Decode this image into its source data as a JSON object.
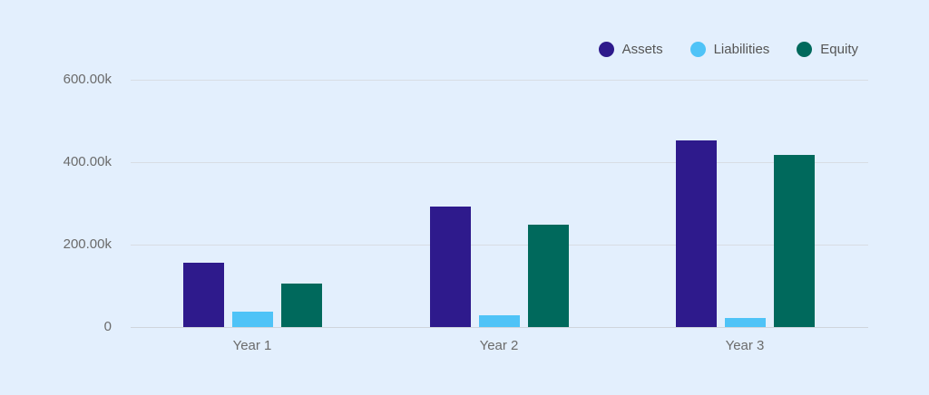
{
  "chart_data": {
    "type": "bar",
    "title": "",
    "xlabel": "",
    "ylabel": "",
    "categories": [
      "Year 1",
      "Year 2",
      "Year 3"
    ],
    "series": [
      {
        "name": "Assets",
        "color": "#2e1a8c",
        "values": [
          156000,
          292000,
          453000
        ]
      },
      {
        "name": "Liabilities",
        "color": "#4fc3f7",
        "values": [
          38000,
          28000,
          22000
        ]
      },
      {
        "name": "Equity",
        "color": "#00695c",
        "values": [
          105000,
          248000,
          418000
        ]
      }
    ],
    "yticks": [
      0,
      200000,
      400000,
      600000
    ],
    "ytick_labels": [
      "0",
      "200.00k",
      "400.00k",
      "600.00k"
    ],
    "ylim": [
      0,
      600000
    ],
    "grid": true,
    "legend_position": "top-right"
  },
  "legend": {
    "items": [
      {
        "label": "Assets",
        "color": "#2e1a8c"
      },
      {
        "label": "Liabilities",
        "color": "#4fc3f7"
      },
      {
        "label": "Equity",
        "color": "#00695c"
      }
    ]
  },
  "axis": {
    "y_labels": [
      "600.00k",
      "400.00k",
      "200.00k",
      "0"
    ],
    "x_labels": [
      "Year 1",
      "Year 2",
      "Year 3"
    ]
  }
}
